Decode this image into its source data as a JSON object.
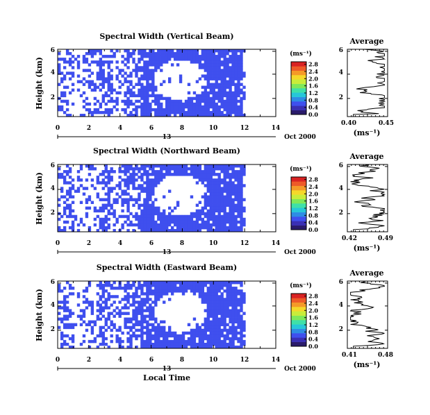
{
  "colors": {
    "background": "#ffffff",
    "fill": "#3f4fee",
    "axes": "#000000",
    "colorbar": [
      "#2a1b6b",
      "#3a2fb4",
      "#3f4fee",
      "#2e8de4",
      "#27c7d8",
      "#3fe0a8",
      "#7fe85a",
      "#c9ec3a",
      "#f5d82a",
      "#f59a28",
      "#ee5a28",
      "#d92222"
    ]
  },
  "chart_data": [
    {
      "type": "heatmap",
      "title": "Spectral Width (Vertical Beam)",
      "ylabel": "Height (km)",
      "xticks": [
        "0",
        "2",
        "4",
        "6",
        "8",
        "10",
        "12",
        "14"
      ],
      "yticks": [
        "2",
        "4",
        "6"
      ],
      "xlim": [
        0,
        14
      ],
      "ylim": [
        0.3,
        6.2
      ],
      "date_day": "13",
      "date_label": "Oct 2000",
      "colorbar_label": "(ms⁻¹)",
      "colorbar_ticks": [
        "0.0",
        "0.4",
        "0.8",
        "1.2",
        "1.6",
        "2.0",
        "2.4",
        "2.8"
      ],
      "profile": {
        "title": "Average",
        "xlabel": "(ms⁻¹)",
        "xticks": [
          "0.40",
          "0.45"
        ],
        "yticks": [
          "2",
          "4",
          "6"
        ],
        "xlim": [
          0.395,
          0.455
        ]
      }
    },
    {
      "type": "heatmap",
      "title": "Spectral Width (Northward Beam)",
      "ylabel": "Height (km)",
      "xticks": [
        "0",
        "2",
        "4",
        "6",
        "8",
        "10",
        "12",
        "14"
      ],
      "yticks": [
        "2",
        "4",
        "6"
      ],
      "xlim": [
        0,
        14
      ],
      "ylim": [
        0.3,
        6.2
      ],
      "date_day": "13",
      "date_label": "Oct 2000",
      "colorbar_label": "(ms⁻¹)",
      "colorbar_ticks": [
        "0.0",
        "0.4",
        "0.8",
        "1.2",
        "1.6",
        "2.0",
        "2.4",
        "2.8"
      ],
      "profile": {
        "title": "Average",
        "xlabel": "(ms⁻¹)",
        "xticks": [
          "0.42",
          "0.49"
        ],
        "yticks": [
          "2",
          "4",
          "6"
        ],
        "xlim": [
          0.415,
          0.495
        ]
      }
    },
    {
      "type": "heatmap",
      "title": "Spectral Width (Eastward Beam)",
      "ylabel": "Height (km)",
      "xlabel": "Local Time",
      "xticks": [
        "0",
        "2",
        "4",
        "6",
        "8",
        "10",
        "12",
        "14"
      ],
      "yticks": [
        "2",
        "4",
        "6"
      ],
      "xlim": [
        0,
        14
      ],
      "ylim": [
        0.3,
        6.2
      ],
      "date_day": "13",
      "date_label": "Oct 2000",
      "colorbar_label": "(ms⁻¹)",
      "colorbar_ticks": [
        "0.0",
        "0.4",
        "0.8",
        "1.2",
        "1.6",
        "2.0",
        "2.4",
        "2.8"
      ],
      "profile": {
        "title": "Average",
        "xlabel": "(ms⁻¹)",
        "xticks": [
          "0.41",
          "0.48"
        ],
        "yticks": [
          "2",
          "4",
          "6"
        ],
        "xlim": [
          0.405,
          0.485
        ]
      }
    }
  ]
}
